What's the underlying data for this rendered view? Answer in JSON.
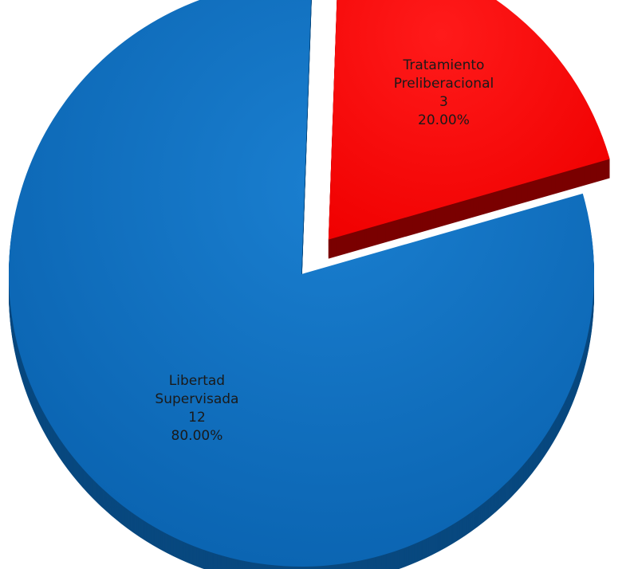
{
  "chart_data": {
    "type": "pie",
    "style": "3d-exploded",
    "slices": [
      {
        "label_lines": [
          "Libertad",
          "Supervisada"
        ],
        "value": 12,
        "value_text": "12",
        "percent": "80.00%",
        "color": "#0c6ec2",
        "side_color": "#08487f",
        "exploded": false
      },
      {
        "label_lines": [
          "Tratamiento",
          "Preliberacional"
        ],
        "value": 3,
        "value_text": "3",
        "percent": "20.00%",
        "color": "#ff0606",
        "side_color": "#7a0000",
        "exploded": true
      }
    ]
  }
}
